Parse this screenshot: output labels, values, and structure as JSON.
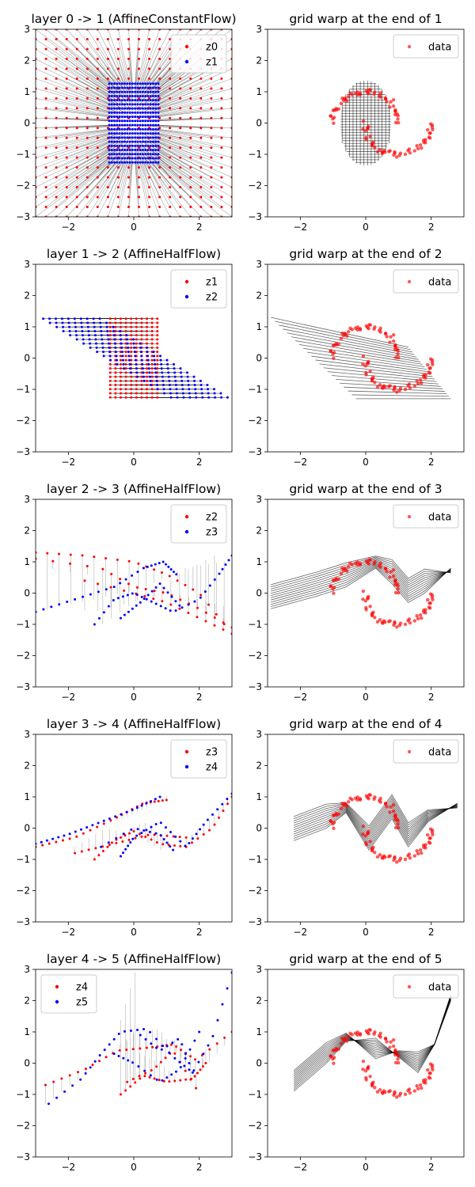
{
  "figure": {
    "rows": 5,
    "cols": 2
  },
  "chart_data": [
    {
      "type": "scatter",
      "title": "layer 0 -> 1 (AffineConstantFlow)",
      "xlim": [
        -3,
        3
      ],
      "ylim": [
        -3,
        3
      ],
      "xticks": [
        -2,
        0,
        2
      ],
      "yticks": [
        -3,
        -2,
        -1,
        0,
        1,
        2,
        3
      ],
      "legend": "top-right",
      "series": [
        {
          "name": "z0",
          "color": "#ff0000"
        },
        {
          "name": "z1",
          "color": "#0000ff"
        }
      ],
      "mapping": "grid points in [-3,3]x[-3,3] scaled toward the origin (x*0.25, y*0.42), joined by grey lines"
    },
    {
      "type": "scatter",
      "title": "grid warp at the end of 1",
      "xlim": [
        -3,
        3
      ],
      "ylim": [
        -3,
        3
      ],
      "xticks": [
        -2,
        0,
        2
      ],
      "yticks": [
        -3,
        -2,
        -1,
        0,
        1,
        2,
        3
      ],
      "legend": "top-right",
      "series": [
        {
          "name": "data",
          "color": "#ff0000"
        }
      ]
    },
    {
      "type": "scatter",
      "title": "layer 1 -> 2 (AffineHalfFlow)",
      "xlim": [
        -3,
        3
      ],
      "ylim": [
        -3,
        3
      ],
      "xticks": [
        -2,
        0,
        2
      ],
      "yticks": [
        -3,
        -2,
        -1,
        0,
        1,
        2,
        3
      ],
      "legend": "top-right",
      "series": [
        {
          "name": "z1",
          "color": "#ff0000"
        },
        {
          "name": "z2",
          "color": "#0000ff"
        }
      ]
    },
    {
      "type": "scatter",
      "title": "grid warp at the end of 2",
      "xlim": [
        -3,
        3
      ],
      "ylim": [
        -3,
        3
      ],
      "xticks": [
        -2,
        0,
        2
      ],
      "yticks": [
        -3,
        -2,
        -1,
        0,
        1,
        2,
        3
      ],
      "legend": "top-right",
      "series": [
        {
          "name": "data",
          "color": "#ff0000"
        }
      ]
    },
    {
      "type": "scatter",
      "title": "layer 2 -> 3 (AffineHalfFlow)",
      "xlim": [
        -3,
        3
      ],
      "ylim": [
        -3,
        3
      ],
      "xticks": [
        -2,
        0,
        2
      ],
      "yticks": [
        -3,
        -2,
        -1,
        0,
        1,
        2,
        3
      ],
      "legend": "top-right",
      "series": [
        {
          "name": "z2",
          "color": "#ff0000"
        },
        {
          "name": "z3",
          "color": "#0000ff"
        }
      ]
    },
    {
      "type": "scatter",
      "title": "grid warp at the end of 3",
      "xlim": [
        -3,
        3
      ],
      "ylim": [
        -3,
        3
      ],
      "xticks": [
        -2,
        0,
        2
      ],
      "yticks": [
        -3,
        -2,
        -1,
        0,
        1,
        2,
        3
      ],
      "legend": "top-right",
      "series": [
        {
          "name": "data",
          "color": "#ff0000"
        }
      ]
    },
    {
      "type": "scatter",
      "title": "layer 3 -> 4 (AffineHalfFlow)",
      "xlim": [
        -3,
        3
      ],
      "ylim": [
        -3,
        3
      ],
      "xticks": [
        -2,
        0,
        2
      ],
      "yticks": [
        -3,
        -2,
        -1,
        0,
        1,
        2,
        3
      ],
      "legend": "top-right",
      "series": [
        {
          "name": "z3",
          "color": "#ff0000"
        },
        {
          "name": "z4",
          "color": "#0000ff"
        }
      ]
    },
    {
      "type": "scatter",
      "title": "grid warp at the end of 4",
      "xlim": [
        -3,
        3
      ],
      "ylim": [
        -3,
        3
      ],
      "xticks": [
        -2,
        0,
        2
      ],
      "yticks": [
        -3,
        -2,
        -1,
        0,
        1,
        2,
        3
      ],
      "legend": "top-right",
      "series": [
        {
          "name": "data",
          "color": "#ff0000"
        }
      ]
    },
    {
      "type": "scatter",
      "title": "layer 4 -> 5 (AffineHalfFlow)",
      "xlim": [
        -3,
        3
      ],
      "ylim": [
        -3,
        3
      ],
      "xticks": [
        -2,
        0,
        2
      ],
      "yticks": [
        -3,
        -2,
        -1,
        0,
        1,
        2,
        3
      ],
      "legend": "top-left",
      "series": [
        {
          "name": "z4",
          "color": "#ff0000"
        },
        {
          "name": "z5",
          "color": "#0000ff"
        }
      ]
    },
    {
      "type": "scatter",
      "title": "grid warp at the end of 5",
      "xlim": [
        -3,
        3
      ],
      "ylim": [
        -3,
        3
      ],
      "xticks": [
        -2,
        0,
        2
      ],
      "yticks": [
        -3,
        -2,
        -1,
        0,
        1,
        2,
        3
      ],
      "legend": "top-right",
      "series": [
        {
          "name": "data",
          "color": "#ff0000"
        }
      ]
    }
  ],
  "layer_curves": [
    [],
    [],
    [
      {
        "s": "z2",
        "pts": [
          [
            -3,
            1.3
          ],
          [
            -1.5,
            1.2
          ],
          [
            0,
            1.0
          ],
          [
            1.0,
            0.6
          ],
          [
            2.0,
            0.0
          ],
          [
            3,
            -1.3
          ]
        ],
        "n": 22
      },
      {
        "s": "z2",
        "pts": [
          [
            -3,
            1.1
          ],
          [
            -1,
            0.8
          ],
          [
            0,
            0.2
          ],
          [
            1,
            0.0
          ],
          [
            2,
            -0.5
          ],
          [
            3,
            -1.1
          ]
        ],
        "n": 20
      },
      {
        "s": "z2",
        "pts": [
          [
            -1.5,
            0.4
          ],
          [
            0,
            0.0
          ],
          [
            1,
            -0.3
          ],
          [
            2,
            -0.8
          ],
          [
            3,
            -1.3
          ]
        ],
        "n": 16
      },
      {
        "s": "z3",
        "pts": [
          [
            -3,
            -0.6
          ],
          [
            -1.8,
            -0.2
          ],
          [
            -0.6,
            0.2
          ],
          [
            0.3,
            0.8
          ],
          [
            0.9,
            1.0
          ],
          [
            1.3,
            0.6
          ]
        ],
        "n": 26
      },
      {
        "s": "z3",
        "pts": [
          [
            -1.2,
            -1.0
          ],
          [
            -0.6,
            -0.2
          ],
          [
            0,
            0.0
          ],
          [
            0.6,
            -0.3
          ],
          [
            1.2,
            -0.6
          ],
          [
            2.0,
            -0.2
          ],
          [
            2.6,
            0.6
          ],
          [
            3,
            1.2
          ]
        ],
        "n": 30
      },
      {
        "s": "z3",
        "pts": [
          [
            -0.4,
            -0.8
          ],
          [
            0.2,
            -0.3
          ],
          [
            0.8,
            0.3
          ],
          [
            1.4,
            -0.4
          ]
        ],
        "n": 16
      }
    ],
    [
      {
        "s": "z3",
        "pts": [
          [
            -3,
            -0.6
          ],
          [
            -1.8,
            -0.3
          ],
          [
            -0.6,
            0.3
          ],
          [
            0.3,
            0.8
          ],
          [
            1.0,
            0.9
          ]
        ],
        "n": 24
      },
      {
        "s": "z3",
        "pts": [
          [
            -1.2,
            -1.0
          ],
          [
            -0.6,
            -0.4
          ],
          [
            0,
            -0.1
          ],
          [
            0.8,
            -0.5
          ],
          [
            1.6,
            -0.6
          ],
          [
            2.4,
            0.0
          ],
          [
            3,
            1.0
          ]
        ],
        "n": 28
      },
      {
        "s": "z3",
        "pts": [
          [
            -1.8,
            -0.8
          ],
          [
            -0.6,
            -0.5
          ],
          [
            0.5,
            -0.2
          ],
          [
            1.6,
            -0.3
          ]
        ],
        "n": 18
      },
      {
        "s": "z4",
        "pts": [
          [
            -3,
            -0.5
          ],
          [
            -2,
            -0.2
          ],
          [
            -1,
            0.2
          ],
          [
            0,
            0.6
          ],
          [
            0.8,
            1.0
          ]
        ],
        "n": 24
      },
      {
        "s": "z4",
        "pts": [
          [
            -0.4,
            -0.9
          ],
          [
            0,
            -0.3
          ],
          [
            0.8,
            0.2
          ],
          [
            1.6,
            -0.6
          ],
          [
            2.2,
            0.2
          ],
          [
            3,
            1.1
          ]
        ],
        "n": 28
      },
      {
        "s": "z4",
        "pts": [
          [
            -1,
            -0.6
          ],
          [
            0,
            0.0
          ],
          [
            0.8,
            -0.2
          ],
          [
            1.2,
            -0.7
          ]
        ],
        "n": 14
      }
    ],
    [
      {
        "s": "z4",
        "pts": [
          [
            -2.7,
            -0.7
          ],
          [
            -1.5,
            -0.2
          ],
          [
            -0.5,
            0.4
          ],
          [
            0.5,
            0.5
          ],
          [
            1.2,
            0.6
          ],
          [
            1.9,
            0.1
          ],
          [
            3,
            1.0
          ]
        ],
        "n": 30
      },
      {
        "s": "z4",
        "pts": [
          [
            -0.4,
            -1.0
          ],
          [
            0.3,
            -0.4
          ],
          [
            1.0,
            -0.6
          ],
          [
            1.8,
            -0.5
          ],
          [
            2.2,
            0.0
          ]
        ],
        "n": 20
      },
      {
        "s": "z4",
        "pts": [
          [
            -0.2,
            -0.6
          ],
          [
            0.6,
            -0.2
          ],
          [
            1.2,
            0.4
          ],
          [
            1.9,
            -0.8
          ]
        ],
        "n": 14
      },
      {
        "s": "z5",
        "pts": [
          [
            -2.6,
            -1.3
          ],
          [
            -1.6,
            -0.5
          ],
          [
            -1,
            0.3
          ],
          [
            -0.4,
            1.0
          ],
          [
            0.4,
            1.1
          ],
          [
            1.2,
            0.2
          ],
          [
            1.8,
            -0.3
          ],
          [
            2.4,
            0.8
          ],
          [
            3,
            2.9
          ]
        ],
        "n": 34
      },
      {
        "s": "z5",
        "pts": [
          [
            -0.6,
            0.3
          ],
          [
            0,
            0.0
          ],
          [
            0.8,
            -0.6
          ],
          [
            1.4,
            -0.2
          ],
          [
            2.0,
            1.0
          ]
        ],
        "n": 18
      },
      {
        "s": "z5",
        "pts": [
          [
            0.2,
            0.9
          ],
          [
            0.8,
            0.4
          ],
          [
            1.4,
            0.8
          ],
          [
            1.8,
            -0.3
          ]
        ],
        "n": 12
      }
    ]
  ]
}
